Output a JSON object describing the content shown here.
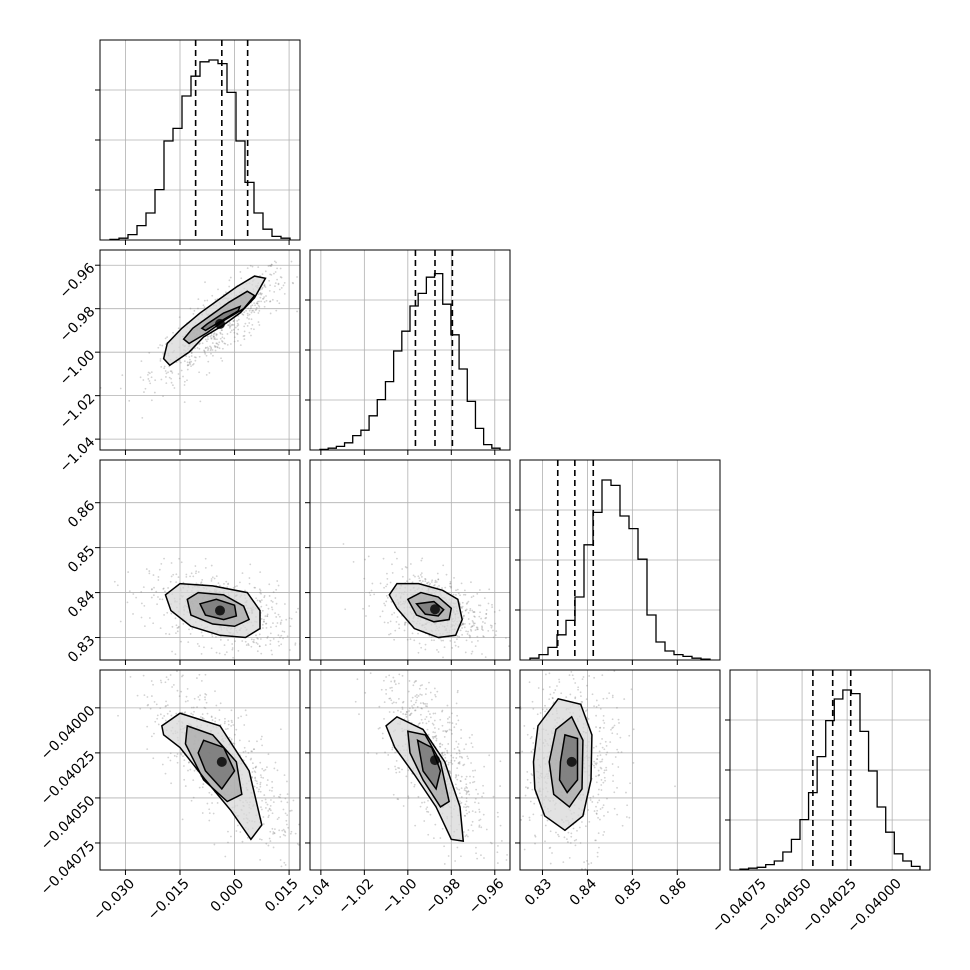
{
  "chart_data": {
    "type": "corner",
    "grid": true,
    "colors": {
      "points": "#7f7f7f",
      "lines": "#000000",
      "grid": "#b0b0b0",
      "background": "#ffffff"
    },
    "parameters": [
      {
        "id": "p1",
        "range": [
          -0.037,
          0.018
        ],
        "ticks": [
          -0.03,
          -0.015,
          0.0,
          0.015
        ],
        "tick_labels": [
          "−0.030",
          "−0.015",
          "0.000",
          "0.015"
        ],
        "quantiles": [
          -0.0107,
          -0.0035,
          0.0036
        ],
        "hist": [
          0.003,
          0.01,
          0.03,
          0.08,
          0.15,
          0.28,
          0.55,
          0.62,
          0.8,
          0.91,
          0.99,
          1.0,
          0.98,
          0.82,
          0.55,
          0.32,
          0.15,
          0.06,
          0.02,
          0.01
        ]
      },
      {
        "id": "p2",
        "range": [
          -1.045,
          -0.953
        ],
        "ticks": [
          -1.04,
          -1.02,
          -1.0,
          -0.98,
          -0.96
        ],
        "tick_labels": [
          "−1.04",
          "−1.02",
          "−1.00",
          "−0.98",
          "−0.96"
        ],
        "quantiles": [
          -0.9965,
          -0.9875,
          -0.9795
        ],
        "hist": [
          0.003,
          0.01,
          0.02,
          0.04,
          0.08,
          0.11,
          0.19,
          0.28,
          0.38,
          0.55,
          0.66,
          0.8,
          0.87,
          0.96,
          0.98,
          0.81,
          0.64,
          0.45,
          0.27,
          0.12,
          0.03,
          0.01
        ]
      },
      {
        "id": "p3",
        "range": [
          0.825,
          0.8695
        ],
        "ticks": [
          0.83,
          0.84,
          0.85,
          0.86
        ],
        "tick_labels": [
          "0.83",
          "0.84",
          "0.85",
          "0.86"
        ],
        "quantiles": [
          0.8334,
          0.8372,
          0.8413
        ],
        "hist": [
          0.01,
          0.03,
          0.07,
          0.14,
          0.22,
          0.35,
          0.64,
          0.82,
          1.0,
          0.97,
          0.8,
          0.73,
          0.56,
          0.25,
          0.1,
          0.05,
          0.03,
          0.02,
          0.01,
          0.005
        ]
      },
      {
        "id": "p4",
        "range": [
          -0.0409,
          -0.03979
        ],
        "ticks": [
          -0.04075,
          -0.0405,
          -0.04025,
          -0.04
        ],
        "tick_labels": [
          "−0.04075",
          "−0.04050",
          "−0.04025",
          "−0.04000"
        ],
        "quantiles": [
          -0.04044,
          -0.04033,
          -0.04023
        ],
        "hist": [
          0.005,
          0.01,
          0.015,
          0.03,
          0.05,
          0.1,
          0.17,
          0.28,
          0.43,
          0.63,
          0.83,
          0.95,
          1.0,
          0.98,
          0.77,
          0.55,
          0.35,
          0.21,
          0.09,
          0.05,
          0.02
        ]
      }
    ],
    "pairs": [
      {
        "x": "p1",
        "y": "p2",
        "center": [
          -0.004,
          -0.987
        ],
        "contours": [
          [
            [
              -0.0178,
              -1.006
            ],
            [
              -0.0125,
              -1.0
            ],
            [
              -0.0085,
              -0.993
            ],
            [
              -0.0035,
              -0.988
            ],
            [
              0.0015,
              -0.982
            ],
            [
              0.0055,
              -0.975
            ],
            [
              0.0085,
              -0.966
            ],
            [
              0.0055,
              -0.965
            ],
            [
              0.0005,
              -0.97
            ],
            [
              -0.0045,
              -0.976
            ],
            [
              -0.0095,
              -0.982
            ],
            [
              -0.0145,
              -0.989
            ],
            [
              -0.0185,
              -0.996
            ],
            [
              -0.0195,
              -1.003
            ]
          ],
          [
            [
              -0.0125,
              -0.996
            ],
            [
              -0.0075,
              -0.991
            ],
            [
              -0.0025,
              -0.985
            ],
            [
              0.0025,
              -0.98
            ],
            [
              0.0055,
              -0.974
            ],
            [
              0.0035,
              -0.972
            ],
            [
              -0.0015,
              -0.977
            ],
            [
              -0.0065,
              -0.983
            ],
            [
              -0.0115,
              -0.989
            ],
            [
              -0.014,
              -0.994
            ]
          ],
          [
            [
              -0.008,
              -0.99
            ],
            [
              -0.003,
              -0.985
            ],
            [
              0.001,
              -0.981
            ],
            [
              0.0015,
              -0.979
            ],
            [
              -0.003,
              -0.982
            ],
            [
              -0.0075,
              -0.987
            ],
            [
              -0.009,
              -0.989
            ]
          ]
        ]
      },
      {
        "x": "p1",
        "y": "p3",
        "center": [
          -0.004,
          0.836
        ],
        "contours": [
          [
            [
              -0.019,
              0.8395
            ],
            [
              -0.0175,
              0.836
            ],
            [
              -0.012,
              0.8325
            ],
            [
              -0.004,
              0.8305
            ],
            [
              0.003,
              0.83
            ],
            [
              0.007,
              0.832
            ],
            [
              0.007,
              0.836
            ],
            [
              0.0035,
              0.84
            ],
            [
              -0.006,
              0.8415
            ],
            [
              -0.015,
              0.842
            ]
          ],
          [
            [
              -0.013,
              0.8385
            ],
            [
              -0.012,
              0.835
            ],
            [
              -0.006,
              0.833
            ],
            [
              0.0,
              0.8325
            ],
            [
              0.004,
              0.834
            ],
            [
              0.0025,
              0.837
            ],
            [
              -0.003,
              0.8395
            ],
            [
              -0.01,
              0.84
            ]
          ],
          [
            [
              -0.0095,
              0.8375
            ],
            [
              -0.008,
              0.835
            ],
            [
              -0.003,
              0.834
            ],
            [
              0.0005,
              0.8348
            ],
            [
              0.0,
              0.8372
            ],
            [
              -0.005,
              0.8385
            ]
          ]
        ]
      },
      {
        "x": "p2",
        "y": "p3",
        "center": [
          -0.9875,
          0.8363
        ],
        "contours": [
          [
            [
              -1.0085,
              0.8395
            ],
            [
              -1.005,
              0.8365
            ],
            [
              -0.997,
              0.832
            ],
            [
              -0.986,
              0.83
            ],
            [
              -0.978,
              0.8305
            ],
            [
              -0.975,
              0.834
            ],
            [
              -0.977,
              0.8385
            ],
            [
              -0.984,
              0.8405
            ],
            [
              -0.995,
              0.842
            ],
            [
              -1.005,
              0.842
            ]
          ],
          [
            [
              -1.0,
              0.8385
            ],
            [
              -0.996,
              0.835
            ],
            [
              -0.988,
              0.8335
            ],
            [
              -0.981,
              0.834
            ],
            [
              -0.98,
              0.8365
            ],
            [
              -0.986,
              0.839
            ],
            [
              -0.994,
              0.84
            ]
          ],
          [
            [
              -0.996,
              0.8375
            ],
            [
              -0.992,
              0.8352
            ],
            [
              -0.986,
              0.8348
            ],
            [
              -0.9835,
              0.8362
            ],
            [
              -0.988,
              0.838
            ]
          ]
        ]
      },
      {
        "x": "p1",
        "y": "p4",
        "center": [
          -0.0035,
          -0.0403
        ],
        "contours": [
          [
            [
              -0.02,
              -0.0401
            ],
            [
              -0.015,
              -0.04003
            ],
            [
              -0.004,
              -0.0401
            ],
            [
              0.004,
              -0.04035
            ],
            [
              0.0075,
              -0.04065
            ],
            [
              0.0045,
              -0.04073
            ],
            [
              -0.001,
              -0.04057
            ],
            [
              -0.008,
              -0.0404
            ],
            [
              -0.015,
              -0.04022
            ],
            [
              -0.0195,
              -0.04015
            ]
          ],
          [
            [
              -0.013,
              -0.0401
            ],
            [
              -0.006,
              -0.04015
            ],
            [
              0.0005,
              -0.0403
            ],
            [
              0.002,
              -0.04048
            ],
            [
              -0.002,
              -0.04052
            ],
            [
              -0.0085,
              -0.0404
            ],
            [
              -0.0135,
              -0.0402
            ]
          ],
          [
            [
              -0.0085,
              -0.04018
            ],
            [
              -0.003,
              -0.04022
            ],
            [
              0.0,
              -0.04035
            ],
            [
              -0.0035,
              -0.04045
            ],
            [
              -0.008,
              -0.04035
            ],
            [
              -0.01,
              -0.04025
            ]
          ]
        ]
      },
      {
        "x": "p2",
        "y": "p4",
        "center": [
          -0.9875,
          -0.04029
        ],
        "contours": [
          [
            [
              -1.01,
              -0.0401
            ],
            [
              -1.005,
              -0.04005
            ],
            [
              -0.993,
              -0.04012
            ],
            [
              -0.983,
              -0.0403
            ],
            [
              -0.976,
              -0.04055
            ],
            [
              -0.9745,
              -0.04074
            ],
            [
              -0.98,
              -0.04073
            ],
            [
              -0.987,
              -0.04055
            ],
            [
              -0.997,
              -0.04037
            ],
            [
              -1.006,
              -0.04022
            ]
          ],
          [
            [
              -1.0,
              -0.04013
            ],
            [
              -0.992,
              -0.04015
            ],
            [
              -0.985,
              -0.0403
            ],
            [
              -0.981,
              -0.04052
            ],
            [
              -0.985,
              -0.04055
            ],
            [
              -0.993,
              -0.0404
            ],
            [
              -0.999,
              -0.04025
            ]
          ],
          [
            [
              -0.9955,
              -0.04018
            ],
            [
              -0.989,
              -0.04022
            ],
            [
              -0.985,
              -0.04035
            ],
            [
              -0.987,
              -0.04045
            ],
            [
              -0.993,
              -0.04035
            ]
          ]
        ]
      },
      {
        "x": "p3",
        "y": "p4",
        "center": [
          0.8365,
          -0.0403
        ],
        "contours": [
          [
            [
              0.828,
              -0.0403
            ],
            [
              0.829,
              -0.0401
            ],
            [
              0.8335,
              -0.03995
            ],
            [
              0.8385,
              -0.03998
            ],
            [
              0.841,
              -0.04015
            ],
            [
              0.8408,
              -0.0404
            ],
            [
              0.839,
              -0.0406
            ],
            [
              0.835,
              -0.04068
            ],
            [
              0.8305,
              -0.0406
            ],
            [
              0.8283,
              -0.04045
            ]
          ],
          [
            [
              0.8315,
              -0.0403
            ],
            [
              0.833,
              -0.04012
            ],
            [
              0.8365,
              -0.04005
            ],
            [
              0.839,
              -0.04018
            ],
            [
              0.8388,
              -0.04045
            ],
            [
              0.836,
              -0.04055
            ],
            [
              0.8325,
              -0.04048
            ]
          ],
          [
            [
              0.834,
              -0.0403
            ],
            [
              0.835,
              -0.04015
            ],
            [
              0.8378,
              -0.04017
            ],
            [
              0.8378,
              -0.0404
            ],
            [
              0.8355,
              -0.04047
            ],
            [
              0.8338,
              -0.0404
            ]
          ]
        ]
      }
    ]
  }
}
